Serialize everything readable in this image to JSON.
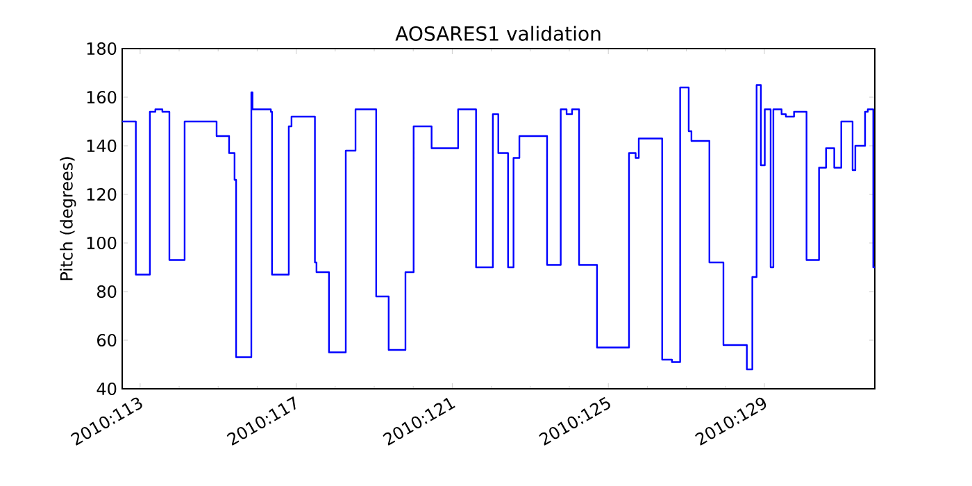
{
  "chart_data": {
    "type": "step",
    "title": "AOSARES1 validation",
    "ylabel": "Pitch (degrees)",
    "xlim": [
      "2010-04-22T12:58",
      "2010-05-11T19:55"
    ],
    "ylim": [
      40,
      180
    ],
    "xticks": [
      {
        "value": "2010-04-23",
        "label": "2010:113"
      },
      {
        "value": "2010-04-27",
        "label": "2010:117"
      },
      {
        "value": "2010-05-01",
        "label": "2010:121"
      },
      {
        "value": "2010-05-05",
        "label": "2010:125"
      },
      {
        "value": "2010-05-09",
        "label": "2010:129"
      }
    ],
    "yticks": [
      40,
      60,
      80,
      100,
      120,
      140,
      160,
      180
    ],
    "x": [
      "2010-04-22T12:58",
      "2010-04-22T21:22",
      "2010-04-23T06:00",
      "2010-04-23T09:22",
      "2010-04-23T13:41",
      "2010-04-23T18:00",
      "2010-04-24T03:22",
      "2010-04-24T23:02",
      "2010-04-25T06:43",
      "2010-04-25T10:05",
      "2010-04-25T11:02",
      "2010-04-25T20:24",
      "2010-04-25T21:07",
      "2010-04-26T08:24",
      "2010-04-26T09:07",
      "2010-04-26T19:26",
      "2010-04-26T21:07",
      "2010-04-27T11:31",
      "2010-04-27T12:29",
      "2010-04-27T20:10",
      "2010-04-28T06:29",
      "2010-04-28T12:29",
      "2010-04-29T01:12",
      "2010-04-29T08:53",
      "2010-04-29T19:12",
      "2010-04-30T00:14",
      "2010-04-30T11:17",
      "2010-05-01T03:36",
      "2010-05-01T14:38",
      "2010-05-02T00:58",
      "2010-05-02T04:19",
      "2010-05-02T10:19",
      "2010-05-02T13:41",
      "2010-05-02T17:17",
      "2010-05-03T10:19",
      "2010-05-03T18:43",
      "2010-05-03T22:19",
      "2010-05-04T01:41",
      "2010-05-04T06:00",
      "2010-05-04T17:02",
      "2010-05-05T12:43",
      "2010-05-05T16:48",
      "2010-05-05T18:43",
      "2010-05-06T09:07",
      "2010-05-06T15:07",
      "2010-05-06T20:10",
      "2010-05-07T01:26",
      "2010-05-07T03:07",
      "2010-05-07T14:10",
      "2010-05-07T22:48",
      "2010-05-08T13:12",
      "2010-05-08T16:34",
      "2010-05-08T19:12",
      "2010-05-08T21:50",
      "2010-05-09T00:14",
      "2010-05-09T03:50",
      "2010-05-09T05:31",
      "2010-05-09T10:34",
      "2010-05-09T13:12",
      "2010-05-09T18:14",
      "2010-05-10T01:55",
      "2010-05-10T09:36",
      "2010-05-10T13:55",
      "2010-05-10T18:58",
      "2010-05-10T23:17",
      "2010-05-11T06:14",
      "2010-05-11T07:55",
      "2010-05-11T13:55",
      "2010-05-11T15:36",
      "2010-05-11T18:58",
      "2010-05-11T19:55"
    ],
    "series": [
      {
        "color": "#0000ff",
        "values": [
          150,
          87,
          154,
          155,
          154,
          93,
          150,
          144,
          137,
          126,
          53,
          162,
          155,
          154,
          87,
          148,
          152,
          92,
          88,
          55,
          138,
          155,
          78,
          56,
          88,
          148,
          139,
          155,
          90,
          153,
          137,
          90,
          135,
          144,
          91,
          155,
          153,
          155,
          91,
          57,
          137,
          135,
          143,
          52,
          51,
          164,
          146,
          142,
          92,
          58,
          48,
          86,
          165,
          132,
          155,
          90,
          155,
          153,
          152,
          154,
          93,
          131,
          139,
          131,
          150,
          130,
          140,
          154,
          155,
          90,
          90
        ]
      }
    ]
  }
}
